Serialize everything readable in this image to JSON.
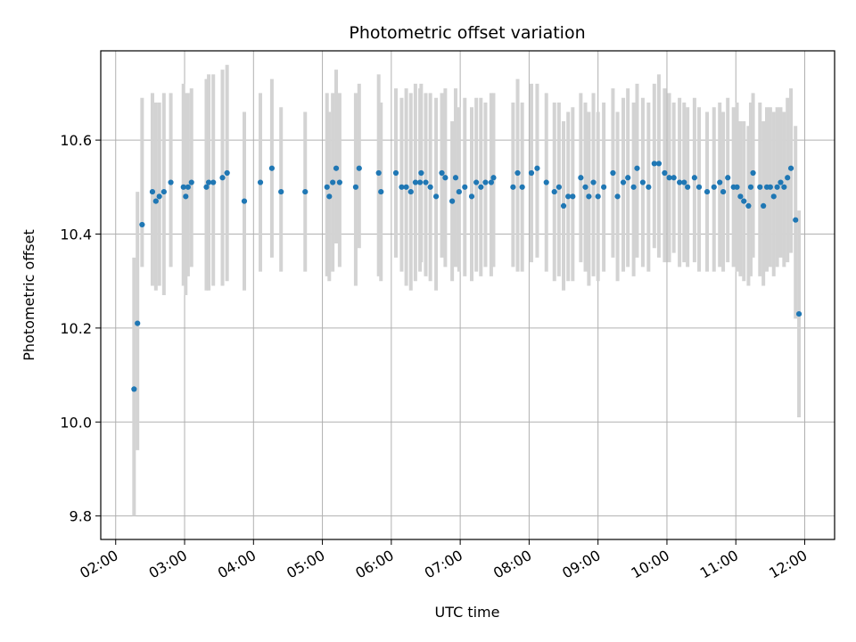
{
  "chart_data": {
    "type": "scatter",
    "title": "Photometric offset variation",
    "xlabel": "UTC time",
    "ylabel": "Photometric offset",
    "x_ticks": [
      "02:00",
      "03:00",
      "04:00",
      "05:00",
      "06:00",
      "07:00",
      "08:00",
      "09:00",
      "10:00",
      "11:00",
      "12:00"
    ],
    "x_tick_values": [
      2,
      3,
      4,
      5,
      6,
      7,
      8,
      9,
      10,
      11,
      12
    ],
    "y_ticks": [
      "9.8",
      "10.0",
      "10.2",
      "10.4",
      "10.6"
    ],
    "y_tick_values": [
      9.8,
      10.0,
      10.2,
      10.4,
      10.6
    ],
    "xlim": [
      "01:47",
      "12:26"
    ],
    "ylim": [
      9.75,
      10.79
    ],
    "grid": true,
    "x_tick_rotation_deg": 30,
    "point_color": "#1f77b4",
    "errorbar_color": "#d3d3d3",
    "series": [
      {
        "x": [
          "02:16",
          "02:19",
          "02:23",
          "02:32",
          "02:35",
          "02:38",
          "02:42",
          "02:48",
          "02:59",
          "03:01",
          "03:03",
          "03:06",
          "03:19",
          "03:21",
          "03:25",
          "03:33",
          "03:37",
          "03:52",
          "04:06",
          "04:16",
          "04:24",
          "04:45",
          "05:04",
          "05:06",
          "05:09",
          "05:12",
          "05:15",
          "05:29",
          "05:32",
          "05:49",
          "05:51",
          "06:04",
          "06:09",
          "06:13",
          "06:17",
          "06:21",
          "06:25",
          "06:26",
          "06:30",
          "06:34",
          "06:39",
          "06:44",
          "06:47",
          "06:53",
          "06:56",
          "06:59",
          "07:04",
          "07:10",
          "07:14",
          "07:18",
          "07:22",
          "07:27",
          "07:29",
          "07:46",
          "07:50",
          "07:54",
          "08:02",
          "08:07",
          "08:15",
          "08:22",
          "08:26",
          "08:30",
          "08:34",
          "08:38",
          "08:45",
          "08:49",
          "08:52",
          "08:56",
          "09:00",
          "09:05",
          "09:13",
          "09:17",
          "09:22",
          "09:26",
          "09:31",
          "09:34",
          "09:39",
          "09:44",
          "09:49",
          "09:53",
          "09:58",
          "10:02",
          "10:06",
          "10:11",
          "10:15",
          "10:18",
          "10:24",
          "10:28",
          "10:35",
          "10:41",
          "10:46",
          "10:49",
          "10:53",
          "10:58",
          "11:01",
          "11:04",
          "11:07",
          "11:11",
          "11:13",
          "11:15",
          "11:21",
          "11:24",
          "11:27",
          "11:30",
          "11:33",
          "11:36",
          "11:39",
          "11:42",
          "11:45",
          "11:48",
          "11:52",
          "11:55"
        ],
        "y": [
          10.07,
          10.21,
          10.42,
          10.49,
          10.47,
          10.48,
          10.49,
          10.51,
          10.5,
          10.48,
          10.5,
          10.51,
          10.5,
          10.51,
          10.51,
          10.52,
          10.53,
          10.47,
          10.51,
          10.54,
          10.49,
          10.49,
          10.5,
          10.48,
          10.51,
          10.54,
          10.51,
          10.5,
          10.54,
          10.53,
          10.49,
          10.53,
          10.5,
          10.5,
          10.49,
          10.51,
          10.51,
          10.53,
          10.51,
          10.5,
          10.48,
          10.53,
          10.52,
          10.47,
          10.52,
          10.49,
          10.5,
          10.48,
          10.51,
          10.5,
          10.51,
          10.51,
          10.52,
          10.5,
          10.53,
          10.5,
          10.53,
          10.54,
          10.51,
          10.49,
          10.5,
          10.46,
          10.48,
          10.48,
          10.52,
          10.5,
          10.48,
          10.51,
          10.48,
          10.5,
          10.53,
          10.48,
          10.51,
          10.52,
          10.5,
          10.54,
          10.51,
          10.5,
          10.55,
          10.55,
          10.53,
          10.52,
          10.52,
          10.51,
          10.51,
          10.5,
          10.52,
          10.5,
          10.49,
          10.5,
          10.51,
          10.49,
          10.52,
          10.5,
          10.5,
          10.48,
          10.47,
          10.46,
          10.5,
          10.53,
          10.5,
          10.46,
          10.5,
          10.5,
          10.48,
          10.5,
          10.51,
          10.5,
          10.52,
          10.54,
          10.43,
          10.23
        ],
        "err_low": [
          9.8,
          9.94,
          10.33,
          10.29,
          10.28,
          10.29,
          10.27,
          10.33,
          10.29,
          10.27,
          10.31,
          10.33,
          10.28,
          10.28,
          10.29,
          10.29,
          10.3,
          10.28,
          10.32,
          10.35,
          10.32,
          10.32,
          10.31,
          10.3,
          10.32,
          10.38,
          10.33,
          10.29,
          10.37,
          10.31,
          10.3,
          10.35,
          10.32,
          10.29,
          10.28,
          10.3,
          10.32,
          10.34,
          10.31,
          10.3,
          10.28,
          10.35,
          10.33,
          10.3,
          10.33,
          10.32,
          10.31,
          10.3,
          10.32,
          10.31,
          10.33,
          10.31,
          10.33,
          10.33,
          10.32,
          10.32,
          10.34,
          10.35,
          10.32,
          10.3,
          10.31,
          10.28,
          10.3,
          10.3,
          10.34,
          10.32,
          10.29,
          10.31,
          10.3,
          10.32,
          10.35,
          10.3,
          10.32,
          10.33,
          10.31,
          10.35,
          10.33,
          10.32,
          10.37,
          10.35,
          10.34,
          10.34,
          10.36,
          10.33,
          10.34,
          10.33,
          10.34,
          10.32,
          10.32,
          10.32,
          10.33,
          10.32,
          10.34,
          10.33,
          10.32,
          10.31,
          10.3,
          10.29,
          10.31,
          10.35,
          10.31,
          10.29,
          10.32,
          10.33,
          10.31,
          10.33,
          10.35,
          10.33,
          10.34,
          10.36,
          10.22,
          10.01
        ],
        "err_high": [
          10.35,
          10.49,
          10.69,
          10.7,
          10.68,
          10.68,
          10.7,
          10.7,
          10.72,
          10.7,
          10.7,
          10.71,
          10.73,
          10.74,
          10.74,
          10.75,
          10.76,
          10.66,
          10.7,
          10.73,
          10.67,
          10.66,
          10.7,
          10.66,
          10.7,
          10.75,
          10.7,
          10.7,
          10.72,
          10.74,
          10.68,
          10.71,
          10.69,
          10.71,
          10.7,
          10.72,
          10.71,
          10.72,
          10.7,
          10.7,
          10.69,
          10.7,
          10.71,
          10.64,
          10.71,
          10.67,
          10.69,
          10.67,
          10.69,
          10.69,
          10.68,
          10.7,
          10.7,
          10.68,
          10.73,
          10.68,
          10.72,
          10.72,
          10.7,
          10.68,
          10.68,
          10.64,
          10.66,
          10.67,
          10.7,
          10.68,
          10.66,
          10.7,
          10.66,
          10.68,
          10.71,
          10.66,
          10.69,
          10.71,
          10.68,
          10.72,
          10.69,
          10.68,
          10.72,
          10.74,
          10.71,
          10.7,
          10.68,
          10.69,
          10.68,
          10.67,
          10.69,
          10.67,
          10.66,
          10.67,
          10.68,
          10.66,
          10.69,
          10.67,
          10.68,
          10.64,
          10.64,
          10.63,
          10.68,
          10.7,
          10.68,
          10.64,
          10.67,
          10.67,
          10.66,
          10.67,
          10.67,
          10.66,
          10.69,
          10.71,
          10.63,
          10.45
        ]
      }
    ]
  }
}
